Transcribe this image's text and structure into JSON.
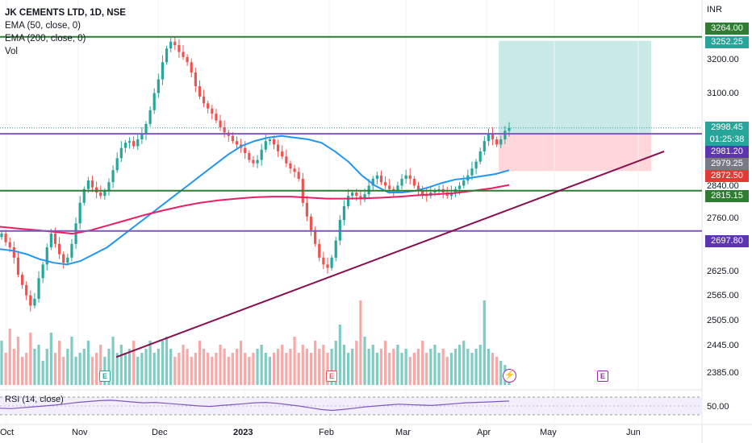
{
  "legend": {
    "title": "JK CEMENTS LTD, 1D, NSE",
    "ema50": "EMA (50, close, 0)",
    "ema200": "EMA (200, close, 0)",
    "vol": "Vol"
  },
  "rsi_label": "RSI (14, close)",
  "currency": "INR",
  "price_axis": [
    "3200.00",
    "3100.00",
    "2840.00",
    "2760.00",
    "2625.00",
    "2565.00",
    "2505.00",
    "2445.00",
    "2385.00"
  ],
  "rsi_axis": "50.00",
  "time_axis": [
    "Oct",
    "Nov",
    "Dec",
    "2023",
    "Feb",
    "Mar",
    "Apr",
    "May",
    "Jun"
  ],
  "tags": {
    "t3264": "3264.00",
    "t3252": "3252.25",
    "t2998": "2998.45",
    "countdown": "01:25:38",
    "t2981": "2981.20",
    "t2979": "2979.25",
    "t2872": "2872.50",
    "t2815": "2815.15",
    "t2697": "2697.80"
  },
  "icons": {
    "earn1": "E",
    "earn2": "E",
    "earn3": "E",
    "bolt": "⚡"
  },
  "colors": {
    "up": "#26a69a",
    "down": "#ef5350",
    "ema50": "#2196f3",
    "ema200": "#e91e63",
    "green_level": "#2e7d32",
    "purple_level": "#7e57c2",
    "trendline": "#880e4f",
    "target_zone": "#b2dfdb",
    "stop_zone": "#ffcdd2"
  },
  "chart_data": {
    "type": "candlestick",
    "y_unit": "INR",
    "ylim": [
      2330,
      3330
    ],
    "levels": [
      3264.0,
      2981.2,
      2815.15,
      2697.8
    ],
    "trendline": {
      "from": [
        "2022-11-15",
        2330
      ],
      "to": [
        "2023-06-15",
        2930
      ]
    },
    "position": {
      "entry": 2981.2,
      "target": 3252.25,
      "stop": 2872.5,
      "start": "2023-04-12",
      "end": "2023-06-10"
    },
    "last_price": 2998.45,
    "closes": [
      2690,
      2665,
      2650,
      2620,
      2570,
      2540,
      2510,
      2480,
      2500,
      2560,
      2600,
      2650,
      2690,
      2660,
      2630,
      2605,
      2620,
      2660,
      2720,
      2780,
      2820,
      2845,
      2825,
      2810,
      2800,
      2815,
      2840,
      2875,
      2910,
      2940,
      2955,
      2960,
      2945,
      2965,
      2980,
      3010,
      3050,
      3100,
      3140,
      3190,
      3230,
      3250,
      3240,
      3220,
      3205,
      3190,
      3160,
      3120,
      3090,
      3070,
      3055,
      3040,
      3020,
      3000,
      2985,
      2975,
      2960,
      2950,
      2940,
      2925,
      2905,
      2895,
      2905,
      2935,
      2960,
      2965,
      2950,
      2930,
      2915,
      2895,
      2880,
      2870,
      2850,
      2780,
      2740,
      2700,
      2660,
      2620,
      2600,
      2590,
      2620,
      2670,
      2730,
      2770,
      2800,
      2810,
      2800,
      2790,
      2805,
      2830,
      2850,
      2860,
      2840,
      2830,
      2820,
      2815,
      2830,
      2850,
      2860,
      2850,
      2830,
      2815,
      2805,
      2800,
      2810,
      2815,
      2820,
      2810,
      2800,
      2810,
      2820,
      2830,
      2845,
      2860,
      2880,
      2900,
      2930,
      2960,
      2980,
      2965,
      2950,
      2965,
      2990,
      2998
    ],
    "ema50": [
      2645,
      2640,
      2630,
      2615,
      2605,
      2600,
      2610,
      2630,
      2650,
      2680,
      2710,
      2740,
      2770,
      2800,
      2830,
      2860,
      2890,
      2920,
      2945,
      2960,
      2970,
      2975,
      2970,
      2965,
      2955,
      2930,
      2900,
      2860,
      2830,
      2810,
      2810,
      2815,
      2825,
      2838,
      2848,
      2852,
      2858,
      2864,
      2875
    ],
    "ema200": [
      2710,
      2705,
      2700,
      2695,
      2690,
      2700,
      2715,
      2730,
      2745,
      2758,
      2770,
      2780,
      2787,
      2792,
      2796,
      2798,
      2798,
      2795,
      2792,
      2792,
      2793,
      2795,
      2798,
      2802,
      2805,
      2808,
      2815,
      2822,
      2832
    ],
    "volume": [
      55,
      40,
      70,
      45,
      60,
      35,
      40,
      65,
      45,
      50,
      30,
      45,
      65,
      40,
      55,
      35,
      45,
      60,
      35,
      40,
      45,
      55,
      35,
      40,
      50,
      35,
      45,
      60,
      40,
      50,
      40,
      45,
      55,
      35,
      40,
      45,
      55,
      40,
      45,
      55,
      60,
      45,
      35,
      40,
      50,
      45,
      35,
      40,
      55,
      45,
      40,
      35,
      40,
      50,
      45,
      35,
      40,
      45,
      55,
      40,
      35,
      40,
      45,
      50,
      40,
      35,
      40,
      45,
      50,
      40,
      45,
      60,
      40,
      50,
      45,
      40,
      55,
      45,
      50,
      40,
      45,
      55,
      75,
      50,
      40,
      45,
      55,
      105,
      60,
      45,
      50,
      40,
      45,
      55,
      40,
      45,
      50,
      40,
      45,
      35,
      40,
      45,
      55,
      40,
      45,
      50,
      40,
      45,
      35,
      40,
      45,
      50,
      55,
      45,
      40,
      45,
      50,
      105,
      45,
      40,
      35,
      30,
      25,
      20
    ],
    "rsi": [
      45,
      44,
      46,
      48,
      50,
      52,
      55,
      58,
      60,
      62,
      63,
      61,
      59,
      57,
      58,
      56,
      54,
      52,
      50,
      49,
      51,
      53,
      55,
      57,
      58,
      56,
      53,
      50,
      46,
      42,
      40,
      42,
      45,
      48,
      50,
      52,
      54,
      53,
      52,
      51,
      53,
      55,
      57,
      58,
      59,
      60,
      61
    ]
  }
}
